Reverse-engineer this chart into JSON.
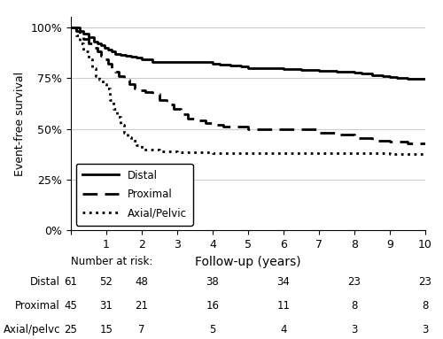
{
  "title": "",
  "xlabel": "Follow-up (years)",
  "ylabel": "Event-free survival",
  "xlim": [
    0,
    10
  ],
  "ylim": [
    0,
    1.05
  ],
  "yticks": [
    0,
    0.25,
    0.5,
    0.75,
    1.0
  ],
  "ytick_labels": [
    "0%",
    "25%",
    "50%",
    "75%",
    "100%"
  ],
  "xticks": [
    0,
    1,
    2,
    3,
    4,
    5,
    6,
    7,
    8,
    9,
    10
  ],
  "distal": {
    "label": "Distal",
    "linestyle": "solid",
    "linewidth": 2.0,
    "color": "#000000",
    "times": [
      0,
      0.15,
      0.25,
      0.35,
      0.5,
      0.65,
      0.75,
      0.85,
      0.95,
      1.05,
      1.15,
      1.25,
      1.4,
      1.55,
      1.7,
      1.85,
      2.0,
      2.3,
      2.6,
      3.0,
      3.5,
      4.0,
      4.2,
      4.5,
      4.8,
      5.0,
      5.5,
      6.0,
      6.5,
      7.0,
      7.5,
      8.0,
      8.2,
      8.5,
      8.8,
      9.0,
      9.2,
      9.5,
      9.8,
      10.0
    ],
    "survival": [
      1.0,
      1.0,
      0.98,
      0.97,
      0.95,
      0.93,
      0.92,
      0.91,
      0.9,
      0.89,
      0.88,
      0.87,
      0.865,
      0.86,
      0.855,
      0.85,
      0.84,
      0.83,
      0.83,
      0.83,
      0.83,
      0.82,
      0.815,
      0.81,
      0.805,
      0.8,
      0.8,
      0.795,
      0.79,
      0.785,
      0.78,
      0.775,
      0.77,
      0.765,
      0.76,
      0.755,
      0.75,
      0.745,
      0.745,
      0.745
    ]
  },
  "proximal": {
    "label": "Proximal",
    "linestyle": "dashed",
    "linewidth": 2.0,
    "color": "#000000",
    "times": [
      0,
      0.15,
      0.25,
      0.35,
      0.5,
      0.65,
      0.75,
      0.85,
      0.95,
      1.05,
      1.15,
      1.25,
      1.35,
      1.5,
      1.65,
      1.8,
      1.95,
      2.1,
      2.3,
      2.5,
      2.7,
      2.9,
      3.1,
      3.3,
      3.5,
      3.8,
      4.0,
      4.3,
      4.6,
      5.0,
      5.5,
      6.0,
      6.5,
      7.0,
      7.5,
      8.0,
      8.5,
      9.0,
      9.5,
      10.0
    ],
    "survival": [
      1.0,
      0.98,
      0.96,
      0.94,
      0.92,
      0.9,
      0.88,
      0.86,
      0.84,
      0.82,
      0.8,
      0.78,
      0.76,
      0.74,
      0.72,
      0.7,
      0.69,
      0.68,
      0.67,
      0.64,
      0.62,
      0.6,
      0.57,
      0.55,
      0.54,
      0.53,
      0.52,
      0.51,
      0.51,
      0.5,
      0.5,
      0.5,
      0.5,
      0.48,
      0.47,
      0.455,
      0.44,
      0.435,
      0.43,
      0.43
    ]
  },
  "axial": {
    "label": "Axial/Pelvic",
    "linestyle": "dotted",
    "linewidth": 2.0,
    "color": "#000000",
    "times": [
      0,
      0.15,
      0.25,
      0.35,
      0.5,
      0.6,
      0.7,
      0.8,
      0.9,
      1.0,
      1.1,
      1.2,
      1.3,
      1.4,
      1.5,
      1.6,
      1.7,
      1.85,
      2.0,
      2.5,
      3.0,
      3.5,
      4.0,
      5.0,
      6.0,
      7.0,
      8.0,
      9.0,
      10.0
    ],
    "survival": [
      1.0,
      0.96,
      0.92,
      0.88,
      0.84,
      0.8,
      0.76,
      0.74,
      0.72,
      0.7,
      0.64,
      0.6,
      0.56,
      0.52,
      0.48,
      0.46,
      0.44,
      0.42,
      0.4,
      0.39,
      0.385,
      0.383,
      0.382,
      0.381,
      0.38,
      0.38,
      0.379,
      0.378,
      0.378
    ]
  },
  "risk_table": {
    "times": [
      0,
      2,
      4,
      6,
      8,
      10
    ],
    "distal": [
      61,
      48,
      38,
      34,
      23,
      23
    ],
    "proximal": [
      45,
      21,
      16,
      11,
      8,
      8
    ],
    "axial": [
      25,
      7,
      5,
      4,
      3,
      3
    ],
    "distal_at1": 52,
    "proximal_at1": 31,
    "axial_at1": 15
  },
  "background_color": "#ffffff",
  "grid_color": "#cccccc",
  "figsize": [
    5.0,
    3.83
  ],
  "dpi": 100
}
